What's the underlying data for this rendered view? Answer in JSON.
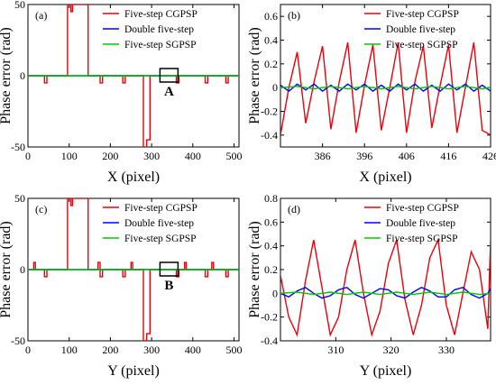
{
  "figure": {
    "panels": [
      "(a)",
      "(b)",
      "(c)",
      "(d)"
    ]
  },
  "chart_data": [
    {
      "type": "line",
      "panel_label": "(a)",
      "xlabel": "X (pixel)",
      "ylabel": "Phase error (rad)",
      "xlim": [
        0,
        512
      ],
      "ylim": [
        -50,
        50
      ],
      "xticks": [
        "0",
        "100",
        "200",
        "300",
        "400",
        "500"
      ],
      "yticks": [
        "-50",
        "0",
        "50"
      ],
      "legend": [
        "Five-step CGPSP",
        "Double five-step",
        "Five-step SGPSP"
      ],
      "legend_position": "upper-right",
      "annotation": "A",
      "series": [
        {
          "name": "Five-step CGPSP",
          "color": "#e8000b",
          "x": [
            0,
            40,
            40,
            46,
            46,
            96,
            96,
            104,
            104,
            108,
            108,
            112,
            112,
            146,
            146,
            175,
            175,
            181,
            181,
            230,
            230,
            236,
            236,
            280,
            280,
            288,
            288,
            296,
            296,
            360,
            360,
            366,
            366,
            430,
            430,
            436,
            436,
            480,
            480,
            486,
            486,
            512
          ],
          "y": [
            0,
            0,
            -5,
            -5,
            0,
            0,
            50,
            50,
            45,
            45,
            50,
            50,
            50,
            50,
            0,
            0,
            -5,
            -5,
            0,
            0,
            -5,
            -5,
            0,
            0,
            -50,
            -50,
            -45,
            -45,
            0,
            0,
            -5,
            -5,
            0,
            0,
            -5,
            -5,
            0,
            0,
            -5,
            -5,
            0,
            0
          ]
        },
        {
          "name": "Double five-step",
          "color": "#0000ff",
          "x": [
            0,
            512
          ],
          "y": [
            0,
            0
          ]
        },
        {
          "name": "Five-step SGPSP",
          "color": "#00c800",
          "x": [
            0,
            512
          ],
          "y": [
            0,
            0
          ]
        }
      ]
    },
    {
      "type": "line",
      "panel_label": "(b)",
      "xlabel": "X (pixel)",
      "ylabel": "Phase error (rad)",
      "xlim": [
        376,
        426
      ],
      "ylim": [
        -0.5,
        0.7
      ],
      "xticks": [
        "386",
        "396",
        "406",
        "416",
        "426"
      ],
      "yticks": [
        "-0.4",
        "-0.2",
        "0",
        "0.2",
        "0.4",
        "0.6"
      ],
      "legend": [
        "Five-step CGPSP",
        "Double five-step",
        "Five-step SGPSP"
      ],
      "legend_position": "top-right",
      "series": [
        {
          "name": "Five-step CGPSP",
          "color": "#e8000b",
          "x": [
            376,
            378,
            380,
            382,
            384,
            386,
            388,
            390,
            392,
            394,
            396,
            398,
            400,
            402,
            404,
            406,
            408,
            410,
            412,
            414,
            416,
            418,
            420,
            422,
            424,
            426
          ],
          "y": [
            -0.4,
            0.0,
            0.3,
            -0.3,
            0.05,
            0.35,
            -0.35,
            0.05,
            0.38,
            -0.38,
            0.02,
            0.36,
            -0.36,
            0.0,
            0.38,
            -0.38,
            0.05,
            0.35,
            -0.34,
            0.02,
            0.36,
            -0.38,
            0.0,
            0.38,
            -0.36,
            -0.4
          ]
        },
        {
          "name": "Double five-step",
          "color": "#0000ff",
          "x": [
            376,
            378,
            380,
            382,
            384,
            386,
            388,
            390,
            392,
            394,
            396,
            398,
            400,
            402,
            404,
            406,
            408,
            410,
            412,
            414,
            416,
            418,
            420,
            422,
            424,
            426
          ],
          "y": [
            0.02,
            -0.03,
            0.03,
            -0.02,
            0.03,
            -0.03,
            0.02,
            -0.03,
            0.03,
            -0.02,
            0.03,
            -0.03,
            0.02,
            -0.03,
            0.03,
            -0.02,
            0.03,
            -0.03,
            0.02,
            -0.03,
            0.03,
            -0.02,
            0.03,
            -0.03,
            0.02,
            -0.03
          ]
        },
        {
          "name": "Five-step SGPSP",
          "color": "#00c800",
          "x": [
            376,
            380,
            384,
            388,
            392,
            396,
            400,
            404,
            408,
            412,
            416,
            420,
            424,
            426
          ],
          "y": [
            0.0,
            0.01,
            -0.01,
            0.01,
            -0.01,
            0.01,
            -0.01,
            0.01,
            -0.01,
            0.01,
            -0.01,
            0.01,
            -0.01,
            0.0
          ]
        }
      ]
    },
    {
      "type": "line",
      "panel_label": "(c)",
      "xlabel": "Y (pixel)",
      "ylabel": "Phase error (rad)",
      "xlim": [
        0,
        512
      ],
      "ylim": [
        -50,
        50
      ],
      "xticks": [
        "0",
        "100",
        "200",
        "300",
        "400",
        "500"
      ],
      "yticks": [
        "-50",
        "0",
        "50"
      ],
      "legend": [
        "Five-step CGPSP",
        "Double five-step",
        "Five-step SGPSP"
      ],
      "legend_position": "upper-right",
      "annotation": "B",
      "series": [
        {
          "name": "Five-step CGPSP",
          "color": "#e8000b",
          "x": [
            0,
            14,
            14,
            18,
            18,
            40,
            40,
            46,
            46,
            96,
            96,
            104,
            104,
            108,
            108,
            112,
            112,
            146,
            146,
            170,
            170,
            175,
            175,
            181,
            181,
            230,
            230,
            236,
            236,
            250,
            250,
            254,
            254,
            280,
            280,
            288,
            288,
            296,
            296,
            360,
            360,
            366,
            366,
            380,
            380,
            384,
            384,
            430,
            430,
            436,
            436,
            446,
            446,
            450,
            450,
            480,
            480,
            486,
            486,
            512
          ],
          "y": [
            0,
            0,
            5,
            5,
            0,
            0,
            -5,
            -5,
            0,
            0,
            50,
            50,
            45,
            45,
            50,
            50,
            50,
            50,
            0,
            0,
            5,
            5,
            -5,
            -5,
            0,
            0,
            -5,
            -5,
            0,
            0,
            5,
            5,
            0,
            0,
            -50,
            -50,
            -45,
            -45,
            0,
            0,
            -5,
            -5,
            0,
            0,
            5,
            5,
            0,
            0,
            -5,
            -5,
            0,
            0,
            5,
            5,
            0,
            0,
            -5,
            -5,
            0,
            0
          ]
        },
        {
          "name": "Double five-step",
          "color": "#0000ff",
          "x": [
            0,
            512
          ],
          "y": [
            0,
            0
          ]
        },
        {
          "name": "Five-step SGPSP",
          "color": "#00c800",
          "x": [
            0,
            512
          ],
          "y": [
            0,
            0
          ]
        }
      ]
    },
    {
      "type": "line",
      "panel_label": "(d)",
      "xlabel": "Y (pixel)",
      "ylabel": "Phase error (rad)",
      "xlim": [
        300,
        338
      ],
      "ylim": [
        -0.4,
        0.8
      ],
      "xticks": [
        "310",
        "320",
        "330"
      ],
      "yticks": [
        "-0.4",
        "-0.2",
        "0",
        "0.2",
        "0.4",
        "0.6",
        "0.8"
      ],
      "legend": [
        "Five-step CGPSP",
        "Double five-step",
        "Five-step SGPSP"
      ],
      "legend_position": "top-right",
      "series": [
        {
          "name": "Five-step CGPSP",
          "color": "#e8000b",
          "x": [
            300,
            301.5,
            303,
            304.5,
            306,
            307.5,
            309,
            310.5,
            312,
            313.5,
            315,
            316.5,
            318,
            319.5,
            321,
            322.5,
            324,
            325.5,
            327,
            328.5,
            330,
            331.5,
            333,
            334.5,
            336,
            337.5,
            338
          ],
          "y": [
            0.15,
            -0.2,
            -0.35,
            0.1,
            0.45,
            0.05,
            -0.35,
            -0.2,
            0.2,
            0.45,
            0.0,
            -0.35,
            -0.15,
            0.25,
            0.45,
            -0.05,
            -0.35,
            -0.1,
            0.3,
            0.45,
            -0.1,
            -0.35,
            0.0,
            0.35,
            0.2,
            -0.3,
            0.45
          ]
        },
        {
          "name": "Double five-step",
          "color": "#0000ff",
          "x": [
            300,
            301.5,
            303,
            304.5,
            306,
            307.5,
            309,
            310.5,
            312,
            313.5,
            315,
            316.5,
            318,
            319.5,
            321,
            322.5,
            324,
            325.5,
            327,
            328.5,
            330,
            331.5,
            333,
            334.5,
            336,
            337.5,
            338
          ],
          "y": [
            0.0,
            -0.03,
            0.02,
            0.05,
            0.0,
            -0.04,
            -0.02,
            0.03,
            0.05,
            -0.01,
            -0.04,
            0.0,
            0.04,
            0.03,
            -0.02,
            -0.04,
            0.01,
            0.05,
            0.02,
            -0.03,
            -0.03,
            0.03,
            0.05,
            -0.01,
            -0.04,
            0.0,
            0.04
          ]
        },
        {
          "name": "Five-step SGPSP",
          "color": "#00c800",
          "x": [
            300,
            303,
            306,
            309,
            312,
            315,
            318,
            321,
            324,
            327,
            330,
            333,
            336,
            338
          ],
          "y": [
            0.0,
            0.01,
            -0.01,
            0.01,
            -0.01,
            0.01,
            -0.01,
            0.01,
            -0.01,
            0.01,
            -0.01,
            0.01,
            -0.01,
            0.0
          ]
        }
      ]
    }
  ]
}
